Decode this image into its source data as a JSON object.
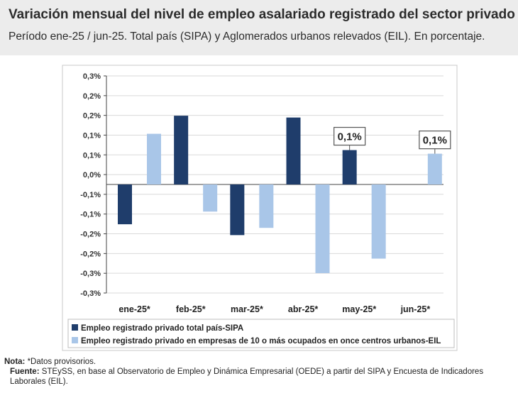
{
  "header": {
    "title": "Variación mensual del nivel de empleo asalariado registrado del sector privado",
    "subtitle": "Período ene-25 / jun-25. Total país (SIPA) y Aglomerados urbanos relevados (EIL). En porcentaje."
  },
  "chart_data": {
    "type": "bar",
    "categories": [
      "ene-25*",
      "feb-25*",
      "mar-25*",
      "abr-25*",
      "may-25*",
      "jun-25*"
    ],
    "series": [
      {
        "name": "Empleo registrado privado total país-SIPA",
        "color": "#1f3d6b",
        "values": [
          -0.11,
          0.19,
          -0.14,
          0.185,
          0.095,
          null
        ]
      },
      {
        "name": "Empleo registrado privado en empresas de 10 o más ocupados en once centros urbanos-EIL",
        "color": "#a9c6e8",
        "values": [
          0.14,
          -0.075,
          -0.12,
          -0.245,
          -0.205,
          0.085
        ]
      }
    ],
    "ylim": [
      -0.3,
      0.3
    ],
    "yticks": [
      "0,3%",
      "0,2%",
      "0,2%",
      "0,1%",
      "0,1%",
      "0,0%",
      "-0,1%",
      "-0,1%",
      "-0,2%",
      "-0,2%",
      "-0,3%",
      "-0,3%"
    ],
    "annotations": [
      {
        "category": "may-25*",
        "text": "0,1%"
      },
      {
        "category": "jun-25*",
        "text": "0,1%"
      }
    ],
    "legend_position": "bottom"
  },
  "notes": {
    "nota_label": "Nota:",
    "nota_text": " *Datos provisorios.",
    "fuente_label": "Fuente:",
    "fuente_text": " STEySS, en base al Observatorio de Empleo y Dinámica Empresarial (OEDE) a partir del SIPA y Encuesta de Indicadores Laborales (EIL)."
  }
}
